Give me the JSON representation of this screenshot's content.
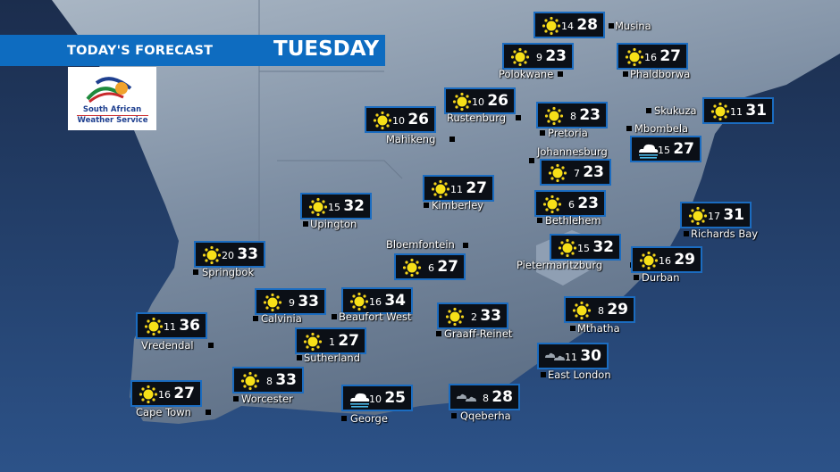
{
  "header": {
    "title": "TODAY'S FORECAST",
    "day": "TUESDAY",
    "bar_color": "#0e6cc0"
  },
  "logo": {
    "line1": "South African",
    "line2": "Weather Service"
  },
  "stations": [
    {
      "name": "Musina",
      "icon": "sunny",
      "min": "14",
      "max": "28"
    },
    {
      "name": "Polokwane",
      "icon": "sunny",
      "min": "9",
      "max": "23"
    },
    {
      "name": "Phaldborwa",
      "icon": "sunny",
      "min": "16",
      "max": "27"
    },
    {
      "name": "Rustenburg",
      "icon": "sunny",
      "min": "10",
      "max": "26"
    },
    {
      "name": "Mahikeng",
      "icon": "sunny",
      "min": "10",
      "max": "26"
    },
    {
      "name": "Pretoria",
      "icon": "sunny",
      "min": "8",
      "max": "23"
    },
    {
      "name": "Skukuza",
      "icon": "sunny",
      "min": "11",
      "max": "31"
    },
    {
      "name": "Mbombela",
      "icon": "fog",
      "min": "15",
      "max": "27"
    },
    {
      "name": "Johannesburg",
      "icon": "sunny",
      "min": "7",
      "max": "23"
    },
    {
      "name": "Bethlehem",
      "icon": "sunny",
      "min": "6",
      "max": "23"
    },
    {
      "name": "Upington",
      "icon": "sunny",
      "min": "15",
      "max": "32"
    },
    {
      "name": "Kimberley",
      "icon": "sunny",
      "min": "11",
      "max": "27"
    },
    {
      "name": "Richards Bay",
      "icon": "sunny",
      "min": "17",
      "max": "31"
    },
    {
      "name": "Bloemfontein",
      "icon": "sunny",
      "min": "6",
      "max": "27"
    },
    {
      "name": "Springbok",
      "icon": "sunny",
      "min": "20",
      "max": "33"
    },
    {
      "name": "Pietermaritzburg",
      "icon": "sunny",
      "min": "15",
      "max": "32"
    },
    {
      "name": "Durban",
      "icon": "sunny",
      "min": "16",
      "max": "29"
    },
    {
      "name": "Calvinia",
      "icon": "sunny",
      "min": "9",
      "max": "33"
    },
    {
      "name": "Beaufort West",
      "icon": "sunny",
      "min": "16",
      "max": "34"
    },
    {
      "name": "Vredendal",
      "icon": "sunny",
      "min": "11",
      "max": "36"
    },
    {
      "name": "Graaff-Reinet",
      "icon": "sunny",
      "min": "2",
      "max": "33"
    },
    {
      "name": "Mthatha",
      "icon": "sunny",
      "min": "8",
      "max": "29"
    },
    {
      "name": "Sutherland",
      "icon": "sunny",
      "min": "1",
      "max": "27"
    },
    {
      "name": "East London",
      "icon": "cloudy",
      "min": "11",
      "max": "30"
    },
    {
      "name": "Worcester",
      "icon": "sunny",
      "min": "8",
      "max": "33"
    },
    {
      "name": "Cape Town",
      "icon": "sunny",
      "min": "16",
      "max": "27"
    },
    {
      "name": "George",
      "icon": "fog",
      "min": "10",
      "max": "25"
    },
    {
      "name": "Qqeberha",
      "icon": "cloudy",
      "min": "8",
      "max": "28"
    }
  ]
}
